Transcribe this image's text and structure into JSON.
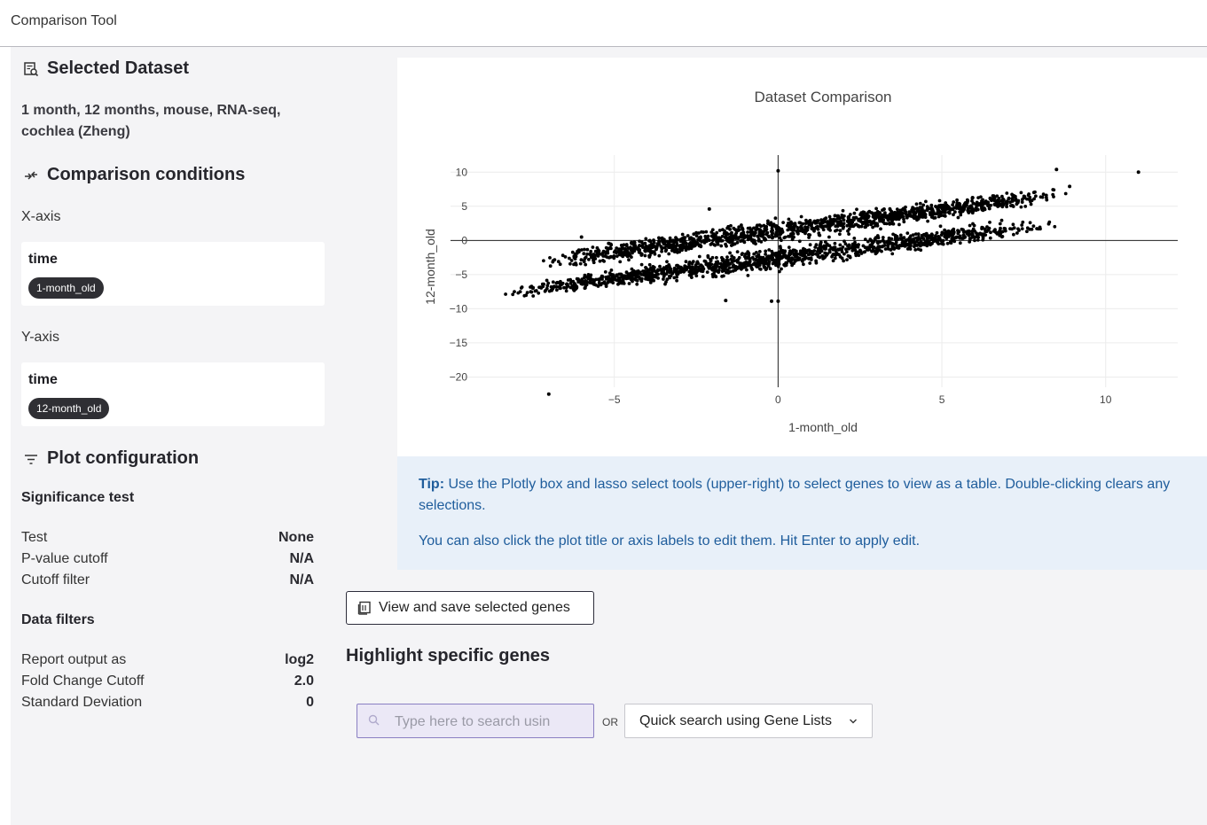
{
  "app": {
    "title": "Comparison Tool"
  },
  "sidebar": {
    "selected_dataset": {
      "heading": "Selected Dataset",
      "icon": "dataset-search-icon",
      "description": "1 month, 12 months, mouse, RNA-seq, cochlea (Zheng)"
    },
    "comparison": {
      "heading": "Comparison conditions",
      "icon": "compare-arrows-icon",
      "x_axis": {
        "label": "X-axis",
        "factor": "time",
        "tag": "1-month_old"
      },
      "y_axis": {
        "label": "Y-axis",
        "factor": "time",
        "tag": "12-month_old"
      }
    },
    "plot_config": {
      "heading": "Plot configuration",
      "icon": "filter-lines-icon",
      "significance": {
        "heading": "Significance test",
        "rows": [
          {
            "key": "Test",
            "value": "None"
          },
          {
            "key": "P-value cutoff",
            "value": "N/A"
          },
          {
            "key": "Cutoff filter",
            "value": "N/A"
          }
        ]
      },
      "filters": {
        "heading": "Data filters",
        "rows": [
          {
            "key": "Report output as",
            "value": "log2"
          },
          {
            "key": "Fold Change Cutoff",
            "value": "2.0"
          },
          {
            "key": "Standard Deviation",
            "value": "0"
          }
        ]
      }
    }
  },
  "chart_data": {
    "type": "scatter",
    "title": "Dataset Comparison",
    "xlabel": "1-month_old",
    "ylabel": "12-month_old",
    "xlim": [
      -10,
      12.2
    ],
    "ylim": [
      -21.5,
      12.5
    ],
    "x_ticks": [
      -5,
      0,
      5,
      10
    ],
    "y_ticks": [
      10,
      5,
      0,
      -5,
      -10,
      -15,
      -20
    ],
    "grid": true,
    "zero_lines": true,
    "point_color": "#000000",
    "bands": [
      {
        "description": "upper band",
        "x_range": [
          -7.5,
          9.0
        ],
        "slope": 0.62,
        "intercept": 1.4,
        "spread": 1.1
      },
      {
        "description": "lower band",
        "x_range": [
          -8.5,
          8.5
        ],
        "slope": 0.6,
        "intercept": -2.6,
        "spread": 1.1
      }
    ],
    "outliers": [
      {
        "x": 0.0,
        "y": 10.2
      },
      {
        "x": 11.0,
        "y": 10.0
      },
      {
        "x": -7.0,
        "y": -22.5
      },
      {
        "x": -0.2,
        "y": -8.9
      },
      {
        "x": 0.0,
        "y": -8.9
      },
      {
        "x": 8.5,
        "y": 10.4
      },
      {
        "x": 8.9,
        "y": 7.9
      },
      {
        "x": -2.1,
        "y": 4.6
      },
      {
        "x": -1.6,
        "y": -8.8
      },
      {
        "x": -6.0,
        "y": 0.5
      }
    ]
  },
  "main": {
    "tip": {
      "label": "Tip:",
      "text": "Use the Plotly box and lasso select tools (upper-right) to select genes to view as a table. Double-clicking clears any selections.",
      "text2": "You can also click the plot title or axis labels to edit them. Hit Enter to apply edit."
    },
    "view_button": {
      "label": "View and save selected genes",
      "icon": "table-list-icon"
    },
    "highlight": {
      "title": "Highlight specific genes",
      "search_placeholder": "Type here to search usin",
      "search_icon": "magnifier-icon",
      "or": "OR",
      "quick_search_label": "Quick search using Gene Lists",
      "quick_search_icon": "chevron-down-icon"
    }
  }
}
